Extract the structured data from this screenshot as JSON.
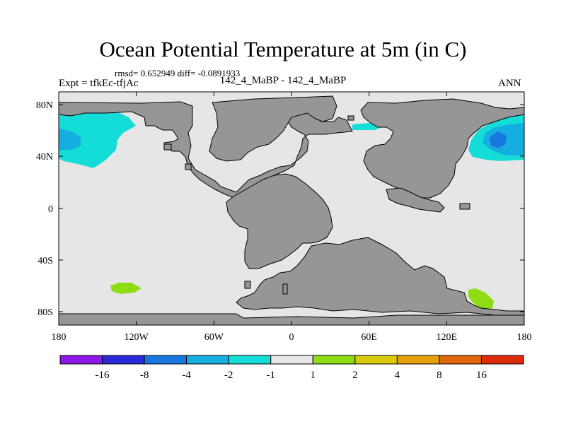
{
  "header": {
    "title": "Ocean Potential Temperature at 5m (in C)",
    "stats": "rmsd= 0.652949 diff= -0.0891933",
    "left_label": "Expt = tfkEc-tfjAc",
    "center_label": "142_4_MaBP - 142_4_MaBP",
    "right_label": "ANN"
  },
  "map": {
    "x_ticks": [
      "180",
      "120W",
      "60W",
      "0",
      "60E",
      "120E",
      "180"
    ],
    "y_ticks": [
      "80N",
      "40N",
      "0",
      "40S",
      "80S"
    ],
    "ocean_color": "#e6e6e6",
    "land_color": "#969696"
  },
  "colorbar": {
    "colors": [
      "#8a18e6",
      "#2a2ad8",
      "#1877de",
      "#14aee0",
      "#14dcd6",
      "#e6e6e6",
      "#8edc14",
      "#d8cc0a",
      "#e6a00a",
      "#e2660a",
      "#dc2a0a"
    ],
    "labels": [
      "-16",
      "-8",
      "-4",
      "-2",
      "-1",
      "1",
      "2",
      "4",
      "8",
      "16"
    ]
  }
}
